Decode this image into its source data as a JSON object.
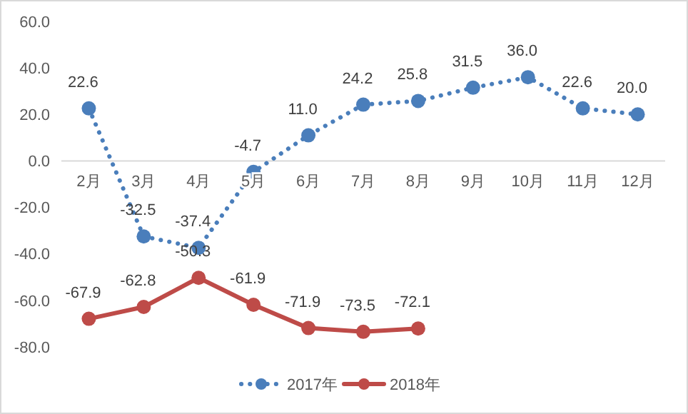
{
  "chart_data": {
    "type": "line",
    "categories": [
      "2月",
      "3月",
      "4月",
      "5月",
      "6月",
      "7月",
      "8月",
      "9月",
      "10月",
      "11月",
      "12月"
    ],
    "series": [
      {
        "name": "2017年",
        "color": "#4a7ebb",
        "line_style": "dotted",
        "values": [
          22.6,
          -32.5,
          -37.4,
          -4.7,
          11.0,
          24.2,
          25.8,
          31.5,
          36.0,
          22.6,
          20.0
        ],
        "value_labels": [
          "22.6",
          "-32.5",
          "-37.4",
          "-4.7",
          "11.0",
          "24.2",
          "25.8",
          "31.5",
          "36.0",
          "22.6",
          "20.0"
        ]
      },
      {
        "name": "2018年",
        "color": "#be4b48",
        "line_style": "solid",
        "values": [
          -67.9,
          -62.8,
          -50.3,
          -61.9,
          -71.9,
          -73.5,
          -72.1,
          null,
          null,
          null,
          null
        ],
        "value_labels": [
          "-67.9",
          "-62.8",
          "-50.3",
          "-61.9",
          "-71.9",
          "-73.5",
          "-72.1",
          null,
          null,
          null,
          null
        ]
      }
    ],
    "ylim": [
      -80,
      60
    ],
    "yticks": [
      {
        "value": 60,
        "label": "60.0"
      },
      {
        "value": 40,
        "label": "40.0"
      },
      {
        "value": 20,
        "label": "20.0"
      },
      {
        "value": 0,
        "label": "0.0"
      },
      {
        "value": -20,
        "label": "-20.0"
      },
      {
        "value": -40,
        "label": "-40.0"
      },
      {
        "value": -60,
        "label": "-60.0"
      },
      {
        "value": -80,
        "label": "-80.0"
      }
    ],
    "grid": false,
    "legend": "bottom",
    "marker": "circle"
  }
}
